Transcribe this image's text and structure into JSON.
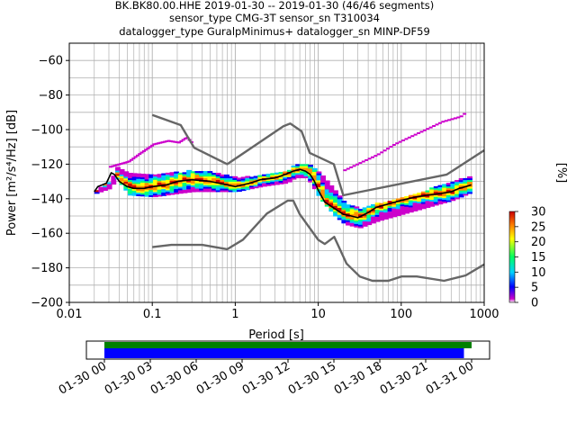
{
  "title_lines": [
    "BK.BK80.00.HHE   2019-01-30 -- 2019-01-30  (46/46 segments)",
    "sensor_type CMG-3T sensor_sn T310034",
    "datalogger_type GuralpMinimus+ datalogger_sn MINP-DF59"
  ],
  "colorbar": {
    "label": "[%]",
    "ticks": [
      "0",
      "5",
      "10",
      "15",
      "20",
      "25",
      "30"
    ]
  },
  "timeline": {
    "tick_labels": [
      "01-30 00",
      "01-30 03",
      "01-30 06",
      "01-30 09",
      "01-30 12",
      "01-30 15",
      "01-30 18",
      "01-30 21",
      "01-31 00"
    ],
    "bars": [
      {
        "name": "data-availability",
        "color": "#008000",
        "start_h": 0.0,
        "end_h": 24.0
      },
      {
        "name": "used-segments",
        "color": "#0000ff",
        "start_h": 0.0,
        "end_h": 23.5
      }
    ]
  },
  "chart_data": {
    "type": "heatmap",
    "xlabel": "Period [s]",
    "ylabel": "Power [m²/s⁴/Hz] [dB]",
    "xscale": "log",
    "xlim": [
      0.01,
      1000
    ],
    "ylim": [
      -200,
      -50
    ],
    "x_tick_labels": [
      "0.01",
      "0.1",
      "1",
      "10",
      "100",
      "1000"
    ],
    "y_tick_labels": [
      "−200",
      "−180",
      "−160",
      "−140",
      "−120",
      "−100",
      "−80",
      "−60"
    ],
    "grid": true,
    "colormap": "pqlx",
    "color_range_percent": [
      0,
      30
    ],
    "nhnm": {
      "name": "NHNM",
      "color": "#666666",
      "periods": [
        0.1,
        0.22,
        0.32,
        0.8,
        3.8,
        4.6,
        6.3,
        7.9,
        15.4,
        20,
        354.8,
        1000
      ],
      "values": [
        -91.5,
        -97.4,
        -110.5,
        -120,
        -98,
        -96.5,
        -101,
        -113.5,
        -120,
        -138,
        -126,
        -112
      ]
    },
    "nlnm": {
      "name": "NLNM",
      "color": "#666666",
      "periods": [
        0.1,
        0.17,
        0.4,
        0.8,
        1.24,
        2.4,
        4.3,
        5,
        6,
        10,
        12,
        15.6,
        21.9,
        31.6,
        45,
        70,
        101,
        154,
        328,
        600,
        1000
      ],
      "values": [
        -168,
        -166.7,
        -166.7,
        -169.2,
        -163.7,
        -148.6,
        -141.1,
        -141.1,
        -149,
        -163.8,
        -166.2,
        -162.1,
        -177.5,
        -185,
        -187.5,
        -187.5,
        -185,
        -185,
        -187.5,
        -184.4,
        -178
      ]
    },
    "mean": {
      "name": "mean",
      "color": "#000000",
      "periods": [
        0.02,
        0.022,
        0.025,
        0.028,
        0.032,
        0.035,
        0.04,
        0.05,
        0.06,
        0.08,
        0.1,
        0.15,
        0.2,
        0.3,
        0.5,
        0.8,
        1.0,
        1.5,
        2,
        3,
        4,
        5,
        6,
        7,
        8,
        9,
        10,
        12,
        15,
        20,
        25,
        30,
        40,
        50,
        70,
        100,
        150,
        200,
        300,
        400,
        500,
        600,
        700
      ],
      "values": [
        -136,
        -133,
        -132,
        -131,
        -125,
        -126,
        -130,
        -133,
        -134,
        -134,
        -133,
        -132,
        -130,
        -129,
        -130,
        -132,
        -133,
        -131,
        -129,
        -128,
        -126,
        -124,
        -123,
        -124,
        -126,
        -130,
        -135,
        -142,
        -145,
        -149,
        -150,
        -151,
        -148,
        -145,
        -143,
        -141,
        -139,
        -138,
        -137,
        -136,
        -134,
        -133,
        -132
      ]
    },
    "bands": [
      {
        "name": "pdf-spread",
        "periods": [
          0.02,
          0.03,
          0.035,
          0.05,
          0.1,
          0.2,
          0.3,
          0.5,
          1,
          2,
          4,
          5,
          7,
          10,
          15,
          20,
          30,
          50,
          100,
          200,
          400,
          700
        ],
        "upper": [
          -135,
          -130,
          -122,
          -126,
          -126,
          -125,
          -124,
          -125,
          -128,
          -127,
          -124,
          -121,
          -120,
          -125,
          -135,
          -143,
          -146,
          -143,
          -140,
          -135,
          -130,
          -127
        ],
        "lower": [
          -137,
          -134,
          -128,
          -138,
          -139,
          -137,
          -136,
          -136,
          -136,
          -133,
          -131,
          -128,
          -128,
          -140,
          -150,
          -155,
          -157,
          -153,
          -149,
          -145,
          -141,
          -136
        ]
      }
    ],
    "outliers": [
      {
        "periods": [
          0.03,
          0.05,
          0.07,
          0.1,
          0.15,
          0.2,
          0.25,
          0.3
        ],
        "values": [
          -121,
          -118,
          -113,
          -108,
          -106,
          -107,
          -104,
          -108
        ]
      },
      {
        "periods": [
          20,
          30,
          50,
          80,
          120,
          200,
          300,
          500,
          600
        ],
        "values": [
          -123,
          -119,
          -114,
          -108,
          -104,
          -99,
          -95,
          -92,
          -89
        ]
      }
    ]
  }
}
